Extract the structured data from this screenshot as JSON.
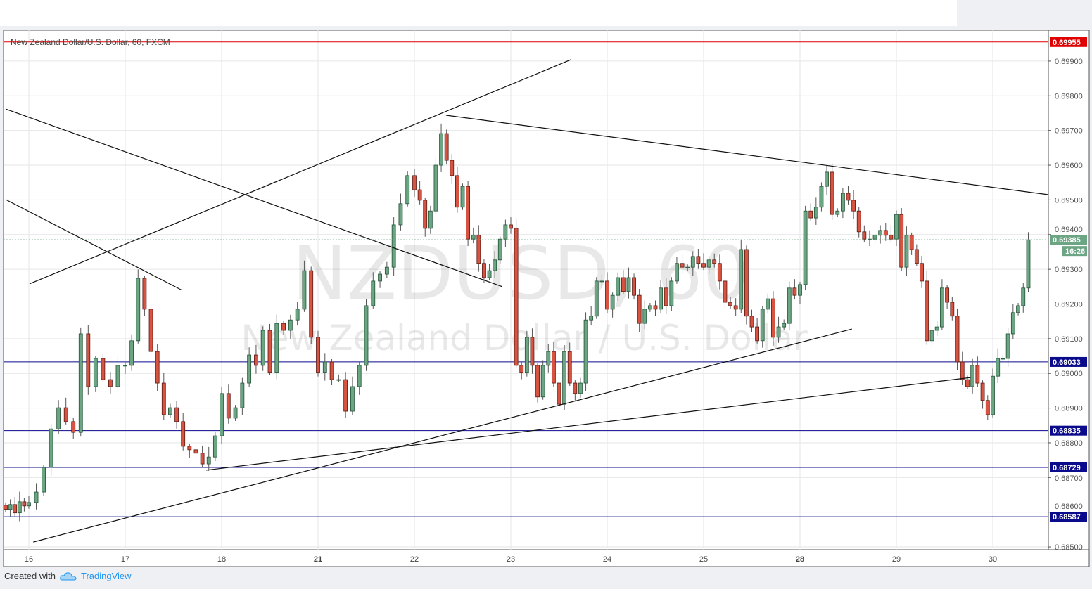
{
  "chart_data": {
    "type": "candlestick",
    "title": "New Zealand Dollar/U.S. Dollar, 60, FXCM",
    "watermark": {
      "symbol": "NZDUSD, 60",
      "description": "New Zealand Dollar / U.S. Dollar"
    },
    "ylim": [
      0.68492,
      0.69989
    ],
    "y_ticks": [
      "0.68500",
      "0.68600",
      "0.68700",
      "0.68800",
      "0.68900",
      "0.69000",
      "0.69100",
      "0.69200",
      "0.69300",
      "0.69400",
      "0.69500",
      "0.69600",
      "0.69700",
      "0.69800",
      "0.69900"
    ],
    "x_ticks": [
      {
        "label": "16",
        "index": 5,
        "bold": false
      },
      {
        "label": "17",
        "index": 18,
        "bold": false
      },
      {
        "label": "18",
        "index": 33,
        "bold": false
      },
      {
        "label": "21",
        "index": 47,
        "bold": true
      },
      {
        "label": "22",
        "index": 61,
        "bold": false
      },
      {
        "label": "23",
        "index": 79,
        "bold": false
      },
      {
        "label": "24",
        "index": 97,
        "bold": false
      },
      {
        "label": "25",
        "index": 115,
        "bold": false
      },
      {
        "label": "28",
        "index": 133,
        "bold": true
      },
      {
        "label": "29",
        "index": 151,
        "bold": false
      },
      {
        "label": "30",
        "index": 170,
        "bold": false
      }
    ],
    "grid": true,
    "first_open": 0.6862,
    "closes": [
      0.68608,
      0.68622,
      0.68598,
      0.6863,
      0.68618,
      0.68628,
      0.68658,
      0.68729,
      0.6884,
      0.68901,
      0.68861,
      0.6883,
      0.69114,
      0.68962,
      0.69043,
      0.68982,
      0.68962,
      0.69023,
      0.69023,
      0.69094,
      0.69274,
      0.69185,
      0.69063,
      0.68972,
      0.68881,
      0.68901,
      0.68861,
      0.6879,
      0.6878,
      0.6877,
      0.68739,
      0.68759,
      0.6882,
      0.68942,
      0.68871,
      0.68901,
      0.68972,
      0.69053,
      0.69023,
      0.69124,
      0.69003,
      0.69144,
      0.69124,
      0.69154,
      0.69185,
      0.69296,
      0.69104,
      0.69003,
      0.69033,
      0.68982,
      0.68982,
      0.68891,
      0.68962,
      0.69023,
      0.69195,
      0.69266,
      0.69286,
      0.69306,
      0.69428,
      0.69489,
      0.6957,
      0.69529,
      0.69499,
      0.69418,
      0.69468,
      0.696,
      0.69691,
      0.69614,
      0.6957,
      0.69479,
      0.69539,
      0.69387,
      0.69398,
      0.69317,
      0.69276,
      0.69296,
      0.69327,
      0.69387,
      0.69428,
      0.69418,
      0.69023,
      0.69003,
      0.69104,
      0.69023,
      0.68932,
      0.69023,
      0.69063,
      0.68972,
      0.68911,
      0.69063,
      0.68972,
      0.68942,
      0.68972,
      0.69154,
      0.69165,
      0.69266,
      0.69266,
      0.69185,
      0.69225,
      0.69276,
      0.69236,
      0.69276,
      0.69225,
      0.69144,
      0.69185,
      0.69195,
      0.69185,
      0.69246,
      0.69195,
      0.69266,
      0.69317,
      0.69306,
      0.69306,
      0.69337,
      0.69317,
      0.69306,
      0.69327,
      0.69317,
      0.69266,
      0.69205,
      0.69195,
      0.69185,
      0.69357,
      0.69165,
      0.69134,
      0.69094,
      0.69185,
      0.69215,
      0.69104,
      0.69134,
      0.69144,
      0.69246,
      0.69225,
      0.69256,
      0.69468,
      0.69448,
      0.69479,
      0.69539,
      0.6958,
      0.69458,
      0.69468,
      0.69519,
      0.69499,
      0.69468,
      0.69408,
      0.69387,
      0.69387,
      0.69398,
      0.69412,
      0.69398,
      0.69387,
      0.69458,
      0.69306,
      0.69398,
      0.69357,
      0.69317,
      0.69266,
      0.69094,
      0.69124,
      0.69134,
      0.69246,
      0.69205,
      0.69165,
      0.69033,
      0.68982,
      0.68962,
      0.69023,
      0.68972,
      0.68922,
      0.68881,
      0.68992,
      0.69043,
      0.69043,
      0.69114,
      0.69175,
      0.69195,
      0.69246,
      0.69385
    ],
    "horizontal_levels": [
      {
        "price": 0.69955,
        "label": "0.69955",
        "color": "#e00000"
      },
      {
        "price": 0.69033,
        "label": "0.69033",
        "color": "#0a0a8c"
      },
      {
        "price": 0.68835,
        "label": "0.68835",
        "color": "#0a0a8c"
      },
      {
        "price": 0.68729,
        "label": "0.68729",
        "color": "#0a0a8c"
      },
      {
        "price": 0.68587,
        "label": "0.68587",
        "color": "#0a0a8c"
      }
    ],
    "last_price": {
      "price": 0.69385,
      "label": "0.69385",
      "countdown": "16:26",
      "color": "#6ba583"
    },
    "trendlines": [
      {
        "from": [
          0,
          0.69762
        ],
        "to": [
          77.4,
          0.6925
        ]
      },
      {
        "from": [
          0,
          0.69501
        ],
        "to": [
          26.8,
          0.6924
        ]
      },
      {
        "from": [
          5.1,
          0.69258
        ],
        "to": [
          90.2,
          0.69904
        ]
      },
      {
        "from": [
          66.9,
          0.69744
        ],
        "to": [
          181.1,
          0.69515
        ]
      },
      {
        "from": [
          5.6,
          0.68514
        ],
        "to": [
          142.7,
          0.69128
        ]
      },
      {
        "from": [
          30.6,
          0.68721
        ],
        "to": [
          165.6,
          0.68988
        ]
      }
    ],
    "colors": {
      "up": "#6ba583",
      "down": "#d75442",
      "up_border": "#225437",
      "down_border": "#5b1a13",
      "grid": "#e6e6e6"
    }
  },
  "footer": {
    "created_with": "Created with",
    "brand": "TradingView",
    "logo_icon": "tradingview-cloud-icon"
  }
}
